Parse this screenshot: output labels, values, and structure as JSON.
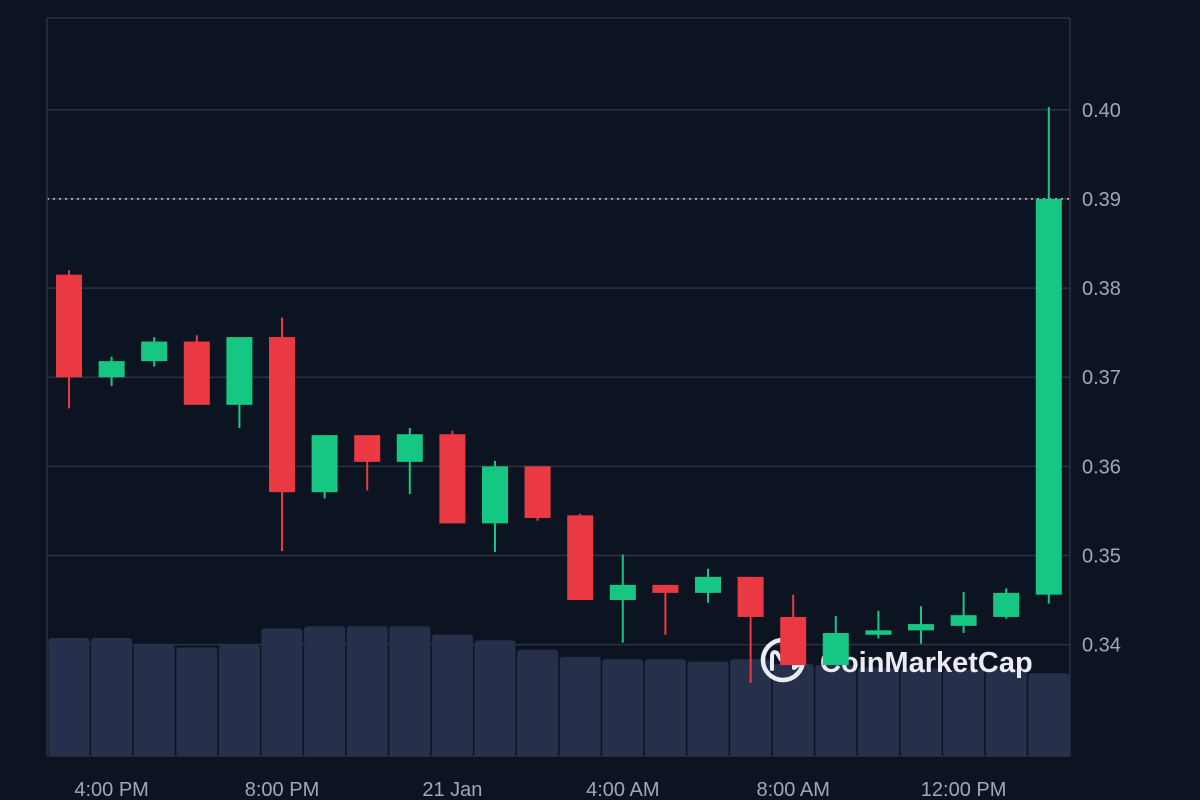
{
  "watermark": "CoinMarketCap",
  "colors": {
    "background": "#0d1421",
    "up": "#16c784",
    "down": "#ea3943",
    "grid": "#2b3240",
    "volume": "#27304a",
    "axis_text": "#a1a7bb"
  },
  "chart_data": {
    "type": "candlestick",
    "x_ticks": [
      "4:00 PM",
      "8:00 PM",
      "21 Jan",
      "4:00 AM",
      "8:00 AM",
      "12:00 PM"
    ],
    "y_ticks": [
      "0.34",
      "0.35",
      "0.36",
      "0.37",
      "0.38",
      "0.39",
      "0.40"
    ],
    "ylim": [
      0.3275,
      0.4103
    ],
    "current_price_line": 0.39,
    "grid": "horizontal",
    "candles": [
      {
        "o": 0.3815,
        "h": 0.382,
        "l": 0.3665,
        "c": 0.37
      },
      {
        "o": 0.37,
        "h": 0.3723,
        "l": 0.369,
        "c": 0.3718
      },
      {
        "o": 0.3718,
        "h": 0.3745,
        "l": 0.3712,
        "c": 0.374
      },
      {
        "o": 0.374,
        "h": 0.3747,
        "l": 0.3669,
        "c": 0.3669
      },
      {
        "o": 0.3669,
        "h": 0.3745,
        "l": 0.3643,
        "c": 0.3745
      },
      {
        "o": 0.3745,
        "h": 0.3767,
        "l": 0.3505,
        "c": 0.3571
      },
      {
        "o": 0.3571,
        "h": 0.3635,
        "l": 0.3564,
        "c": 0.3635
      },
      {
        "o": 0.3635,
        "h": 0.3635,
        "l": 0.3573,
        "c": 0.3605
      },
      {
        "o": 0.3605,
        "h": 0.3643,
        "l": 0.3569,
        "c": 0.3636
      },
      {
        "o": 0.3636,
        "h": 0.364,
        "l": 0.3536,
        "c": 0.3536
      },
      {
        "o": 0.3536,
        "h": 0.3606,
        "l": 0.3504,
        "c": 0.36
      },
      {
        "o": 0.36,
        "h": 0.36,
        "l": 0.3539,
        "c": 0.3542
      },
      {
        "o": 0.3545,
        "h": 0.3547,
        "l": 0.345,
        "c": 0.345
      },
      {
        "o": 0.345,
        "h": 0.3501,
        "l": 0.3402,
        "c": 0.3467
      },
      {
        "o": 0.3467,
        "h": 0.3467,
        "l": 0.3411,
        "c": 0.3458
      },
      {
        "o": 0.3458,
        "h": 0.3485,
        "l": 0.3447,
        "c": 0.3476
      },
      {
        "o": 0.3476,
        "h": 0.3476,
        "l": 0.3357,
        "c": 0.3431
      },
      {
        "o": 0.3431,
        "h": 0.3456,
        "l": 0.3377,
        "c": 0.3377
      },
      {
        "o": 0.3377,
        "h": 0.3432,
        "l": 0.3377,
        "c": 0.3413
      },
      {
        "o": 0.3411,
        "h": 0.3438,
        "l": 0.3407,
        "c": 0.3416
      },
      {
        "o": 0.3416,
        "h": 0.3443,
        "l": 0.3401,
        "c": 0.3423
      },
      {
        "o": 0.3421,
        "h": 0.3459,
        "l": 0.3413,
        "c": 0.3433
      },
      {
        "o": 0.3431,
        "h": 0.3463,
        "l": 0.3429,
        "c": 0.3458
      },
      {
        "o": 0.3456,
        "h": 0.4003,
        "l": 0.3446,
        "c": 0.39
      }
    ],
    "volume": [
      1.0,
      1.0,
      0.95,
      0.92,
      0.94,
      1.08,
      1.1,
      1.1,
      1.1,
      1.03,
      0.98,
      0.9,
      0.84,
      0.82,
      0.82,
      0.8,
      0.82,
      0.78,
      0.77,
      0.75,
      0.74,
      0.73,
      0.74,
      0.7
    ]
  }
}
